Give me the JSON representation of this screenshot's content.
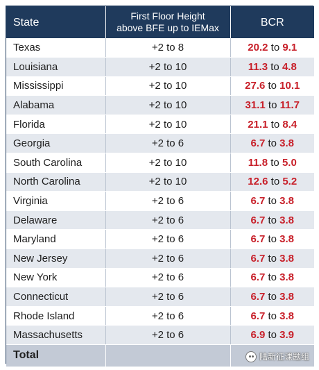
{
  "table": {
    "headers": {
      "state": "State",
      "height_line1": "First Floor Height",
      "height_line2": "above BFE up to IEMax",
      "bcr": "BCR"
    },
    "connector": "to",
    "rows": [
      {
        "state": "Texas",
        "height": "+2 to 8",
        "bcr_from": "20.2",
        "bcr_to": "9.1"
      },
      {
        "state": "Louisiana",
        "height": "+2 to 10",
        "bcr_from": "11.3",
        "bcr_to": "4.8"
      },
      {
        "state": "Mississippi",
        "height": "+2 to 10",
        "bcr_from": "27.6",
        "bcr_to": "10.1"
      },
      {
        "state": "Alabama",
        "height": "+2 to 10",
        "bcr_from": "31.1",
        "bcr_to": "11.7"
      },
      {
        "state": "Florida",
        "height": "+2 to 10",
        "bcr_from": "21.1",
        "bcr_to": "8.4"
      },
      {
        "state": "Georgia",
        "height": "+2 to 6",
        "bcr_from": "6.7",
        "bcr_to": "3.8"
      },
      {
        "state": "South Carolina",
        "height": "+2 to 10",
        "bcr_from": "11.8",
        "bcr_to": "5.0"
      },
      {
        "state": "North Carolina",
        "height": "+2 to 10",
        "bcr_from": "12.6",
        "bcr_to": "5.2"
      },
      {
        "state": "Virginia",
        "height": "+2 to 6",
        "bcr_from": "6.7",
        "bcr_to": "3.8"
      },
      {
        "state": "Delaware",
        "height": "+2 to 6",
        "bcr_from": "6.7",
        "bcr_to": "3.8"
      },
      {
        "state": "Maryland",
        "height": "+2 to 6",
        "bcr_from": "6.7",
        "bcr_to": "3.8"
      },
      {
        "state": "New Jersey",
        "height": "+2 to 6",
        "bcr_from": "6.7",
        "bcr_to": "3.8"
      },
      {
        "state": "New York",
        "height": "+2 to 6",
        "bcr_from": "6.7",
        "bcr_to": "3.8"
      },
      {
        "state": "Connecticut",
        "height": "+2 to 6",
        "bcr_from": "6.7",
        "bcr_to": "3.8"
      },
      {
        "state": "Rhode Island",
        "height": "+2 to 6",
        "bcr_from": "6.7",
        "bcr_to": "3.8"
      },
      {
        "state": "Massachusetts",
        "height": "+2 to 6",
        "bcr_from": "6.9",
        "bcr_to": "3.9"
      }
    ],
    "total": {
      "label": "Total",
      "height": "",
      "bcr": ""
    }
  },
  "watermark": {
    "text": "陆新征课题组",
    "icon": "wechat-icon"
  },
  "colors": {
    "header_bg": "#1f3a5c",
    "stripe": "#e4e8ee",
    "total_bg": "#c3cad6",
    "bcr_red": "#c8202a"
  }
}
